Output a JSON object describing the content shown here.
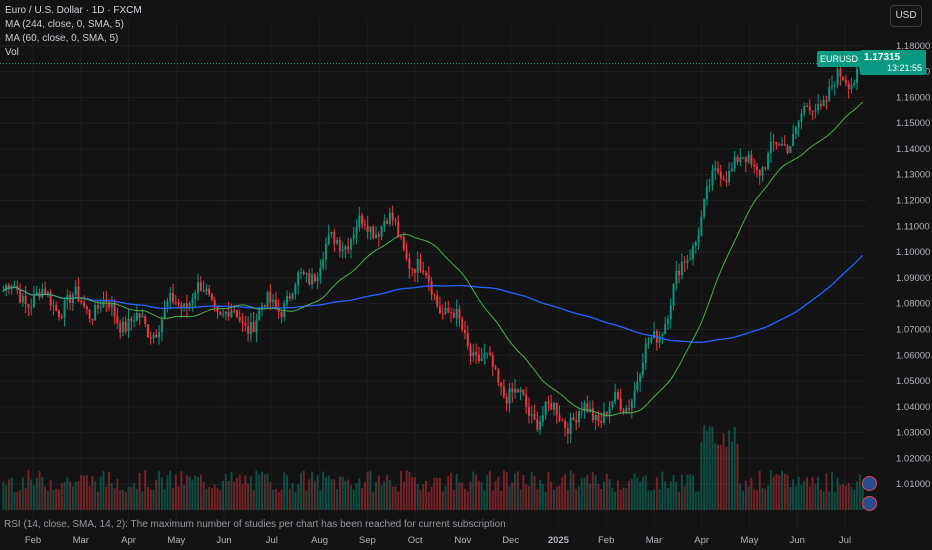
{
  "header": {
    "title": "Euro / U.S. Dollar · 1D · FXCM",
    "indicators": [
      "MA (244, close, 0, SMA, 5)",
      "MA (60, close, 0, SMA, 5)",
      "Vol"
    ],
    "currency": "USD"
  },
  "last_price": {
    "symbol": "EURUSD",
    "price": "1.17315",
    "countdown": "13:21:55"
  },
  "rsi_note": "RSI (14, close, SMA, 14, 2): The maximum number of studies per chart has been reached for current subscription",
  "colors": {
    "up": "#089981",
    "down": "#f23645",
    "ma244": "#2962ff",
    "ma60": "#4caf50",
    "bg": "#131313"
  },
  "chart_data": {
    "type": "candlestick",
    "y_axis": {
      "min": 1.0,
      "max": 1.19,
      "ticks": [
        "1.18000",
        "1.17000",
        "1.16000",
        "1.15000",
        "1.14000",
        "1.13000",
        "1.12000",
        "1.11000",
        "1.10000",
        "1.09000",
        "1.08000",
        "1.07000",
        "1.06000",
        "1.05000",
        "1.04000",
        "1.03000",
        "1.02000",
        "1.01000"
      ]
    },
    "x_axis": {
      "ticks": [
        "Feb",
        "Mar",
        "Apr",
        "May",
        "Jun",
        "Jul",
        "Aug",
        "Sep",
        "Oct",
        "Nov",
        "Dec",
        "2025",
        "Feb",
        "Mar",
        "Apr",
        "May",
        "Jun",
        "Jul"
      ]
    },
    "close_series_monthly": [
      {
        "date": "2024-01",
        "close": 1.085
      },
      {
        "date": "2024-02",
        "close": 1.081
      },
      {
        "date": "2024-03",
        "close": 1.079
      },
      {
        "date": "2024-04",
        "close": 1.07
      },
      {
        "date": "2024-05",
        "close": 1.085
      },
      {
        "date": "2024-06",
        "close": 1.072
      },
      {
        "date": "2024-07",
        "close": 1.083
      },
      {
        "date": "2024-08",
        "close": 1.105
      },
      {
        "date": "2024-09",
        "close": 1.113
      },
      {
        "date": "2024-10",
        "close": 1.085
      },
      {
        "date": "2024-11",
        "close": 1.058
      },
      {
        "date": "2024-12",
        "close": 1.038
      },
      {
        "date": "2025-01",
        "close": 1.036
      },
      {
        "date": "2025-02",
        "close": 1.04
      },
      {
        "date": "2025-03",
        "close": 1.082
      },
      {
        "date": "2025-04",
        "close": 1.133
      },
      {
        "date": "2025-05",
        "close": 1.135
      },
      {
        "date": "2025-06",
        "close": 1.157
      },
      {
        "date": "2025-07",
        "close": 1.17315
      }
    ]
  }
}
